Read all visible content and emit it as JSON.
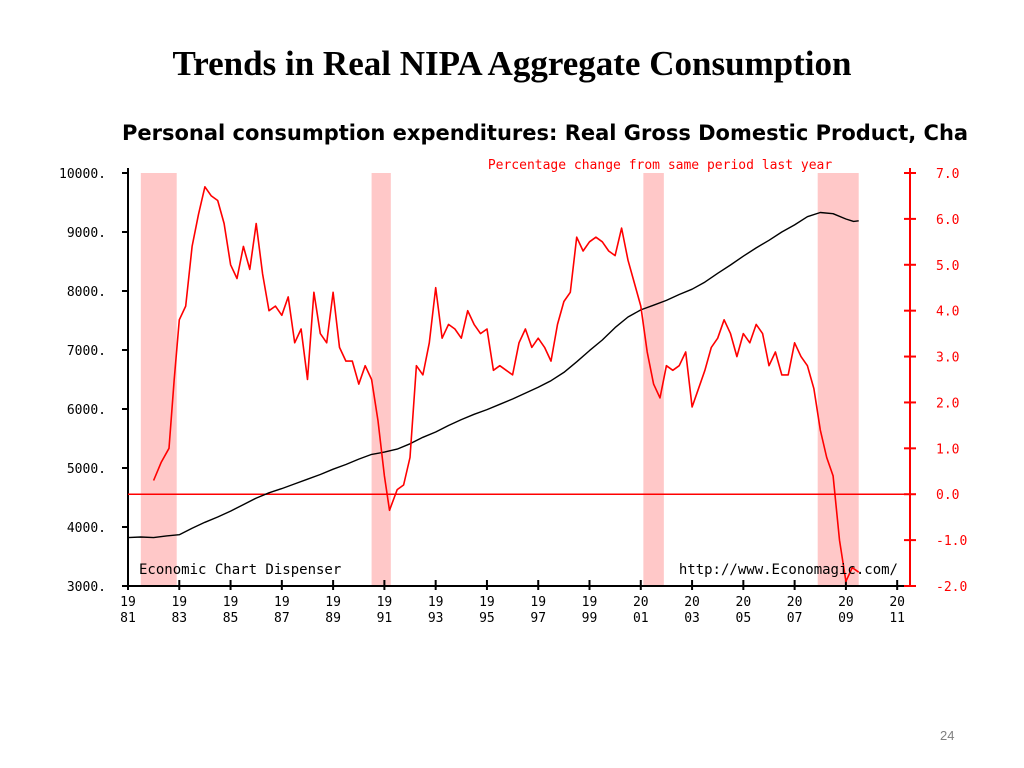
{
  "slide": {
    "title": "Trends in Real NIPA Aggregate Consumption",
    "page_number": "24"
  },
  "chart_data": {
    "type": "line",
    "title": "Personal consumption expenditures: Real Gross Domestic Product, Cha",
    "subtitle": "Percentage change from same period last year",
    "footer_left": "Economic Chart Dispenser",
    "footer_right": "http://www.Economagic.com/",
    "grid": false,
    "colors": {
      "level_series": "#000000",
      "pct_series": "#ff0000",
      "recession_band": "#ffc8c8",
      "axis_right": "#ff0000",
      "axis_left": "#000000"
    },
    "x_axis": {
      "range": [
        1981,
        2011.5
      ],
      "tick_years": [
        1981,
        1983,
        1985,
        1987,
        1989,
        1991,
        1993,
        1995,
        1997,
        1999,
        2001,
        2003,
        2005,
        2007,
        2009,
        2011
      ],
      "tick_labels": [
        [
          "19",
          "81"
        ],
        [
          "19",
          "83"
        ],
        [
          "19",
          "85"
        ],
        [
          "19",
          "87"
        ],
        [
          "19",
          "89"
        ],
        [
          "19",
          "91"
        ],
        [
          "19",
          "93"
        ],
        [
          "19",
          "95"
        ],
        [
          "19",
          "97"
        ],
        [
          "19",
          "99"
        ],
        [
          "20",
          "01"
        ],
        [
          "20",
          "03"
        ],
        [
          "20",
          "05"
        ],
        [
          "20",
          "07"
        ],
        [
          "20",
          "09"
        ],
        [
          "20",
          "11"
        ]
      ]
    },
    "y_left": {
      "ylim": [
        3000,
        10000
      ],
      "ticks": [
        3000,
        4000,
        5000,
        6000,
        7000,
        8000,
        9000,
        10000
      ],
      "tick_labels": [
        "3000.",
        "4000.",
        "5000.",
        "6000.",
        "7000.",
        "8000.",
        "9000.",
        "10000."
      ]
    },
    "y_right": {
      "ylim": [
        -2,
        7
      ],
      "ticks": [
        -2,
        -1,
        0,
        1,
        2,
        3,
        4,
        5,
        6,
        7
      ],
      "tick_labels": [
        "-2.0",
        "-1.0",
        "0.0",
        "1.0",
        "2.0",
        "3.0",
        "4.0",
        "5.0",
        "6.0",
        "7.0"
      ],
      "zero_line": 0
    },
    "recessions": [
      [
        1981.5,
        1982.9
      ],
      [
        1990.5,
        1991.25
      ],
      [
        2001.1,
        2001.9
      ],
      [
        2007.9,
        2009.5
      ]
    ],
    "series": [
      {
        "axis": "left",
        "color": "#000000",
        "points": [
          [
            1981.0,
            3820
          ],
          [
            1981.5,
            3830
          ],
          [
            1982.0,
            3820
          ],
          [
            1982.5,
            3850
          ],
          [
            1983.0,
            3870
          ],
          [
            1983.5,
            3980
          ],
          [
            1984.0,
            4080
          ],
          [
            1984.5,
            4170
          ],
          [
            1985.0,
            4270
          ],
          [
            1985.5,
            4380
          ],
          [
            1986.0,
            4490
          ],
          [
            1986.5,
            4580
          ],
          [
            1987.0,
            4650
          ],
          [
            1987.5,
            4730
          ],
          [
            1988.0,
            4810
          ],
          [
            1988.5,
            4890
          ],
          [
            1989.0,
            4980
          ],
          [
            1989.5,
            5060
          ],
          [
            1990.0,
            5150
          ],
          [
            1990.5,
            5230
          ],
          [
            1991.0,
            5270
          ],
          [
            1991.5,
            5320
          ],
          [
            1992.0,
            5410
          ],
          [
            1992.5,
            5520
          ],
          [
            1993.0,
            5610
          ],
          [
            1993.5,
            5720
          ],
          [
            1994.0,
            5820
          ],
          [
            1994.5,
            5910
          ],
          [
            1995.0,
            5990
          ],
          [
            1995.5,
            6080
          ],
          [
            1996.0,
            6170
          ],
          [
            1996.5,
            6270
          ],
          [
            1997.0,
            6370
          ],
          [
            1997.5,
            6480
          ],
          [
            1998.0,
            6620
          ],
          [
            1998.5,
            6800
          ],
          [
            1999.0,
            6990
          ],
          [
            1999.5,
            7170
          ],
          [
            2000.0,
            7380
          ],
          [
            2000.5,
            7560
          ],
          [
            2001.0,
            7680
          ],
          [
            2001.5,
            7760
          ],
          [
            2002.0,
            7840
          ],
          [
            2002.5,
            7940
          ],
          [
            2003.0,
            8030
          ],
          [
            2003.5,
            8150
          ],
          [
            2004.0,
            8300
          ],
          [
            2004.5,
            8440
          ],
          [
            2005.0,
            8590
          ],
          [
            2005.5,
            8730
          ],
          [
            2006.0,
            8860
          ],
          [
            2006.5,
            9000
          ],
          [
            2007.0,
            9120
          ],
          [
            2007.5,
            9260
          ],
          [
            2008.0,
            9330
          ],
          [
            2008.5,
            9310
          ],
          [
            2009.0,
            9220
          ],
          [
            2009.3,
            9180
          ],
          [
            2009.5,
            9190
          ]
        ]
      },
      {
        "axis": "right",
        "color": "#ff0000",
        "points": [
          [
            1982.0,
            0.3
          ],
          [
            1982.3,
            0.7
          ],
          [
            1982.6,
            1.0
          ],
          [
            1982.8,
            2.5
          ],
          [
            1983.0,
            3.8
          ],
          [
            1983.25,
            4.1
          ],
          [
            1983.5,
            5.4
          ],
          [
            1983.75,
            6.1
          ],
          [
            1984.0,
            6.7
          ],
          [
            1984.25,
            6.5
          ],
          [
            1984.5,
            6.4
          ],
          [
            1984.75,
            5.9
          ],
          [
            1985.0,
            5.0
          ],
          [
            1985.25,
            4.7
          ],
          [
            1985.5,
            5.4
          ],
          [
            1985.75,
            4.9
          ],
          [
            1986.0,
            5.9
          ],
          [
            1986.25,
            4.8
          ],
          [
            1986.5,
            4.0
          ],
          [
            1986.75,
            4.1
          ],
          [
            1987.0,
            3.9
          ],
          [
            1987.25,
            4.3
          ],
          [
            1987.5,
            3.3
          ],
          [
            1987.75,
            3.6
          ],
          [
            1988.0,
            2.5
          ],
          [
            1988.25,
            4.4
          ],
          [
            1988.5,
            3.5
          ],
          [
            1988.75,
            3.3
          ],
          [
            1989.0,
            4.4
          ],
          [
            1989.25,
            3.2
          ],
          [
            1989.5,
            2.9
          ],
          [
            1989.75,
            2.9
          ],
          [
            1990.0,
            2.4
          ],
          [
            1990.25,
            2.8
          ],
          [
            1990.5,
            2.5
          ],
          [
            1990.75,
            1.6
          ],
          [
            1991.0,
            0.4
          ],
          [
            1991.2,
            -0.35
          ],
          [
            1991.5,
            0.1
          ],
          [
            1991.75,
            0.2
          ],
          [
            1992.0,
            0.8
          ],
          [
            1992.25,
            2.8
          ],
          [
            1992.5,
            2.6
          ],
          [
            1992.75,
            3.3
          ],
          [
            1993.0,
            4.5
          ],
          [
            1993.25,
            3.4
          ],
          [
            1993.5,
            3.7
          ],
          [
            1993.75,
            3.6
          ],
          [
            1994.0,
            3.4
          ],
          [
            1994.25,
            4.0
          ],
          [
            1994.5,
            3.7
          ],
          [
            1994.75,
            3.5
          ],
          [
            1995.0,
            3.6
          ],
          [
            1995.25,
            2.7
          ],
          [
            1995.5,
            2.8
          ],
          [
            1995.75,
            2.7
          ],
          [
            1996.0,
            2.6
          ],
          [
            1996.25,
            3.3
          ],
          [
            1996.5,
            3.6
          ],
          [
            1996.75,
            3.2
          ],
          [
            1997.0,
            3.4
          ],
          [
            1997.25,
            3.2
          ],
          [
            1997.5,
            2.9
          ],
          [
            1997.75,
            3.7
          ],
          [
            1998.0,
            4.2
          ],
          [
            1998.25,
            4.4
          ],
          [
            1998.5,
            5.6
          ],
          [
            1998.75,
            5.3
          ],
          [
            1999.0,
            5.5
          ],
          [
            1999.25,
            5.6
          ],
          [
            1999.5,
            5.5
          ],
          [
            1999.75,
            5.3
          ],
          [
            2000.0,
            5.2
          ],
          [
            2000.25,
            5.8
          ],
          [
            2000.5,
            5.1
          ],
          [
            2000.75,
            4.6
          ],
          [
            2001.0,
            4.1
          ],
          [
            2001.25,
            3.1
          ],
          [
            2001.5,
            2.4
          ],
          [
            2001.75,
            2.1
          ],
          [
            2002.0,
            2.8
          ],
          [
            2002.25,
            2.7
          ],
          [
            2002.5,
            2.8
          ],
          [
            2002.75,
            3.1
          ],
          [
            2003.0,
            1.9
          ],
          [
            2003.25,
            2.3
          ],
          [
            2003.5,
            2.7
          ],
          [
            2003.75,
            3.2
          ],
          [
            2004.0,
            3.4
          ],
          [
            2004.25,
            3.8
          ],
          [
            2004.5,
            3.5
          ],
          [
            2004.75,
            3.0
          ],
          [
            2005.0,
            3.5
          ],
          [
            2005.25,
            3.3
          ],
          [
            2005.5,
            3.7
          ],
          [
            2005.75,
            3.5
          ],
          [
            2006.0,
            2.8
          ],
          [
            2006.25,
            3.1
          ],
          [
            2006.5,
            2.6
          ],
          [
            2006.75,
            2.6
          ],
          [
            2007.0,
            3.3
          ],
          [
            2007.25,
            3.0
          ],
          [
            2007.5,
            2.8
          ],
          [
            2007.75,
            2.3
          ],
          [
            2008.0,
            1.4
          ],
          [
            2008.25,
            0.8
          ],
          [
            2008.5,
            0.4
          ],
          [
            2008.75,
            -1.0
          ],
          [
            2009.0,
            -1.9
          ],
          [
            2009.25,
            -1.6
          ],
          [
            2009.5,
            -1.7
          ]
        ]
      }
    ]
  }
}
